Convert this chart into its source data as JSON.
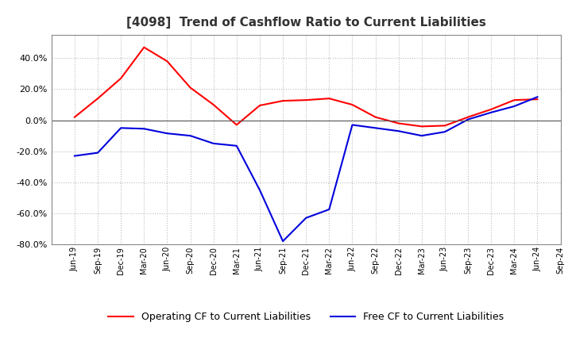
{
  "title": "[4098]  Trend of Cashflow Ratio to Current Liabilities",
  "x_labels": [
    "Jun-19",
    "Sep-19",
    "Dec-19",
    "Mar-20",
    "Jun-20",
    "Sep-20",
    "Dec-20",
    "Mar-21",
    "Jun-21",
    "Sep-21",
    "Dec-21",
    "Mar-22",
    "Jun-22",
    "Sep-22",
    "Dec-22",
    "Mar-23",
    "Jun-23",
    "Sep-23",
    "Dec-23",
    "Mar-24",
    "Jun-24",
    "Sep-24"
  ],
  "operating_cf": [
    2.0,
    14.0,
    27.0,
    47.0,
    38.0,
    21.0,
    10.0,
    -3.0,
    9.5,
    12.5,
    13.0,
    14.0,
    10.0,
    2.0,
    -2.0,
    -4.0,
    -3.5,
    2.0,
    7.0,
    13.0,
    13.5,
    null
  ],
  "free_cf": [
    -23.0,
    -21.0,
    -5.0,
    -5.5,
    -8.5,
    -10.0,
    -15.0,
    -16.5,
    -45.0,
    -78.0,
    -63.0,
    -57.5,
    -3.0,
    -5.0,
    -7.0,
    -10.0,
    -7.5,
    0.5,
    5.0,
    9.0,
    15.0,
    null
  ],
  "ylim": [
    -80.0,
    55.0
  ],
  "yticks": [
    -80.0,
    -60.0,
    -40.0,
    -20.0,
    0.0,
    20.0,
    40.0
  ],
  "operating_color": "#ff0000",
  "free_color": "#0000dd",
  "background_color": "#ffffff",
  "grid_color": "#bbbbbb",
  "legend_op": "Operating CF to Current Liabilities",
  "legend_free": "Free CF to Current Liabilities",
  "title_color": "#333333"
}
